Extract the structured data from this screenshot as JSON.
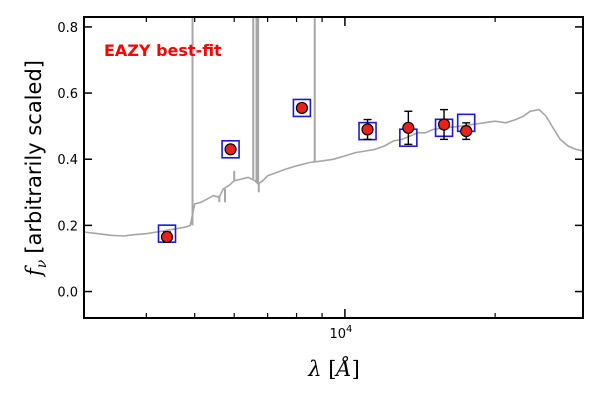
{
  "chart_data": {
    "type": "scatter",
    "annotation": "EAZY best-fit",
    "xlabel_symbol": "λ",
    "xlabel_unit": "Å",
    "ylabel_symbol": "f",
    "ylabel_subscript": "ν",
    "ylabel_text": "[arbitrarily scaled]",
    "x_scale": "log",
    "xlim": [
      3000,
      30000
    ],
    "ylim": [
      -0.08,
      0.83
    ],
    "x_major_tick_label": {
      "base": "10",
      "exponent": "4",
      "value": 10000
    },
    "x_minor_ticks": [
      4000,
      5000,
      6000,
      7000,
      8000,
      9000,
      20000
    ],
    "y_ticks": [
      0.0,
      0.2,
      0.4,
      0.6,
      0.8
    ],
    "y_tick_labels": [
      "0.0",
      "0.2",
      "0.4",
      "0.6",
      "0.8"
    ],
    "colors": {
      "template": "#a6a6a6",
      "observed_fill": "#e8221b",
      "model_box": "#1a1ad6",
      "annotation": "#ff0000"
    },
    "template_spectrum": [
      [
        3000,
        0.18
      ],
      [
        3200,
        0.175
      ],
      [
        3400,
        0.17
      ],
      [
        3600,
        0.168
      ],
      [
        3800,
        0.172
      ],
      [
        4000,
        0.175
      ],
      [
        4200,
        0.18
      ],
      [
        4400,
        0.185
      ],
      [
        4600,
        0.19
      ],
      [
        4800,
        0.195
      ],
      [
        4900,
        0.2
      ],
      [
        5000,
        0.265
      ],
      [
        5150,
        0.27
      ],
      [
        5300,
        0.28
      ],
      [
        5450,
        0.29
      ],
      [
        5600,
        0.285
      ],
      [
        5700,
        0.31
      ],
      [
        5850,
        0.32
      ],
      [
        6000,
        0.335
      ],
      [
        6200,
        0.34
      ],
      [
        6400,
        0.345
      ],
      [
        6600,
        0.335
      ],
      [
        6700,
        0.325
      ],
      [
        6850,
        0.335
      ],
      [
        7000,
        0.35
      ],
      [
        7300,
        0.36
      ],
      [
        7600,
        0.37
      ],
      [
        8000,
        0.38
      ],
      [
        8500,
        0.39
      ],
      [
        9000,
        0.395
      ],
      [
        9500,
        0.4
      ],
      [
        10000,
        0.41
      ],
      [
        10500,
        0.42
      ],
      [
        11000,
        0.425
      ],
      [
        11500,
        0.43
      ],
      [
        12000,
        0.44
      ],
      [
        12500,
        0.455
      ],
      [
        13000,
        0.46
      ],
      [
        13500,
        0.47
      ],
      [
        14000,
        0.48
      ],
      [
        14500,
        0.48
      ],
      [
        15000,
        0.49
      ],
      [
        16000,
        0.495
      ],
      [
        17000,
        0.5
      ],
      [
        18000,
        0.505
      ],
      [
        19000,
        0.51
      ],
      [
        20000,
        0.515
      ],
      [
        21000,
        0.51
      ],
      [
        22000,
        0.52
      ],
      [
        22800,
        0.53
      ],
      [
        23500,
        0.545
      ],
      [
        24500,
        0.55
      ],
      [
        25300,
        0.53
      ],
      [
        26000,
        0.5
      ],
      [
        27000,
        0.46
      ],
      [
        28000,
        0.44
      ],
      [
        29000,
        0.43
      ],
      [
        30000,
        0.425
      ]
    ],
    "template_emission_lines": [
      {
        "x": 4950,
        "base": 0.2,
        "peak": 0.83
      },
      {
        "x": 6550,
        "base": 0.34,
        "peak": 0.83
      },
      {
        "x": 6650,
        "base": 0.33,
        "peak": 0.83
      },
      {
        "x": 6700,
        "base": 0.325,
        "peak": 0.83
      },
      {
        "x": 6000,
        "base": 0.335,
        "peak": 0.365
      },
      {
        "x": 8700,
        "base": 0.39,
        "peak": 0.83
      }
    ],
    "template_absorption_lines": [
      {
        "x": 5600,
        "base": 0.29,
        "trough": 0.27
      },
      {
        "x": 5750,
        "base": 0.31,
        "trough": 0.27
      },
      {
        "x": 6720,
        "base": 0.33,
        "trough": 0.3
      }
    ],
    "model_photometry": [
      {
        "x": 4400,
        "y": 0.175
      },
      {
        "x": 5900,
        "y": 0.43
      },
      {
        "x": 8200,
        "y": 0.555
      },
      {
        "x": 11100,
        "y": 0.485
      },
      {
        "x": 13400,
        "y": 0.465
      },
      {
        "x": 15800,
        "y": 0.495
      },
      {
        "x": 17500,
        "y": 0.51
      }
    ],
    "observed_photometry": [
      {
        "x": 4400,
        "y": 0.165,
        "err": 0.015
      },
      {
        "x": 5900,
        "y": 0.43,
        "err": 0.0
      },
      {
        "x": 8200,
        "y": 0.555,
        "err": 0.0
      },
      {
        "x": 11100,
        "y": 0.49,
        "err": 0.03
      },
      {
        "x": 13400,
        "y": 0.495,
        "err": 0.05
      },
      {
        "x": 15800,
        "y": 0.505,
        "err": 0.045
      },
      {
        "x": 17500,
        "y": 0.485,
        "err": 0.025
      }
    ]
  }
}
